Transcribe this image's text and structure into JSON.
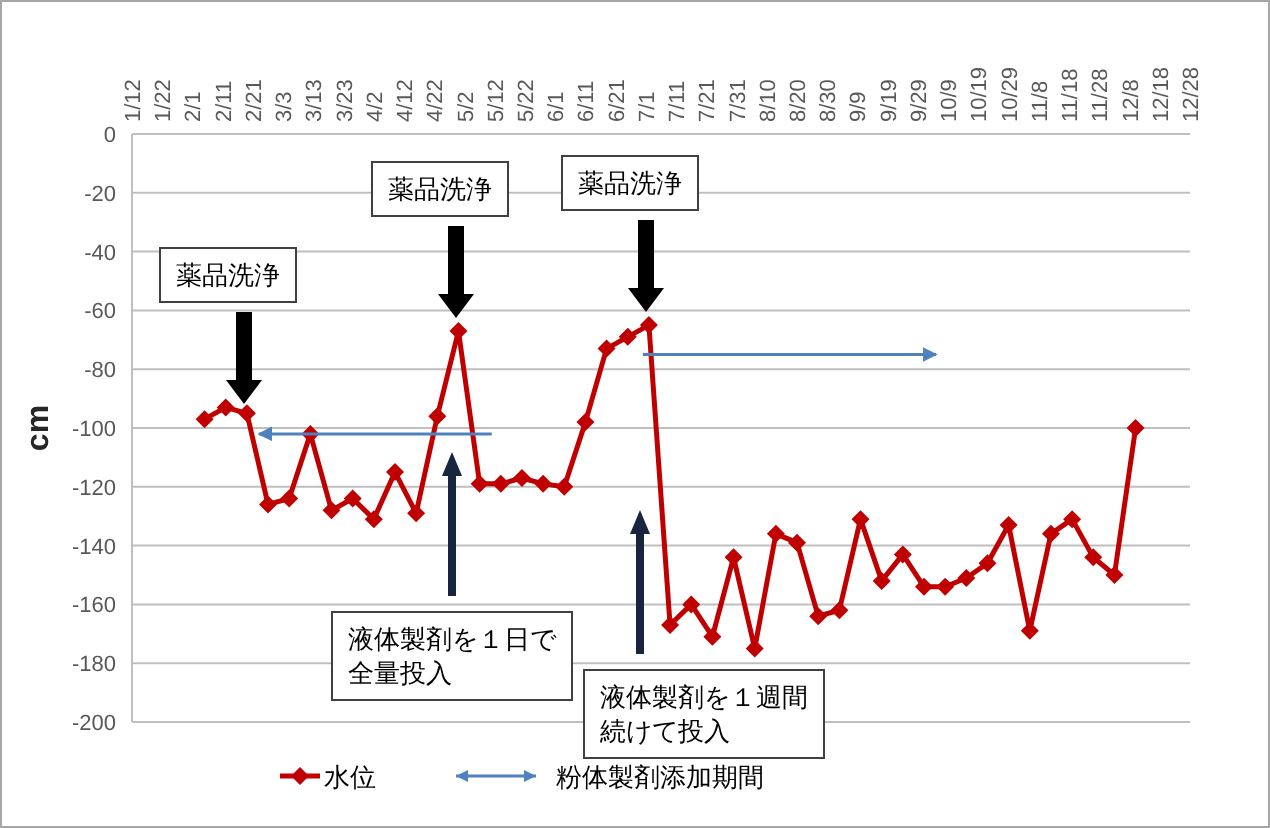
{
  "chart_data": {
    "type": "line",
    "ylabel": "cm",
    "xlim": [
      "--01-12",
      "--12-28"
    ],
    "xticks": [
      {
        "value": "--01-12",
        "label": "1/12"
      },
      {
        "value": "--01-22",
        "label": "1/22"
      },
      {
        "value": "--02-01",
        "label": "2/1"
      },
      {
        "value": "--02-11",
        "label": "2/11"
      },
      {
        "value": "--02-21",
        "label": "2/21"
      },
      {
        "value": "--03-03",
        "label": "3/3"
      },
      {
        "value": "--03-13",
        "label": "3/13"
      },
      {
        "value": "--03-23",
        "label": "3/23"
      },
      {
        "value": "--04-02",
        "label": "4/2"
      },
      {
        "value": "--04-12",
        "label": "4/12"
      },
      {
        "value": "--04-22",
        "label": "4/22"
      },
      {
        "value": "--05-02",
        "label": "5/2"
      },
      {
        "value": "--05-12",
        "label": "5/12"
      },
      {
        "value": "--05-22",
        "label": "5/22"
      },
      {
        "value": "--06-01",
        "label": "6/1"
      },
      {
        "value": "--06-11",
        "label": "6/11"
      },
      {
        "value": "--06-21",
        "label": "6/21"
      },
      {
        "value": "--07-01",
        "label": "7/1"
      },
      {
        "value": "--07-11",
        "label": "7/11"
      },
      {
        "value": "--07-21",
        "label": "7/21"
      },
      {
        "value": "--07-31",
        "label": "7/31"
      },
      {
        "value": "--08-10",
        "label": "8/10"
      },
      {
        "value": "--08-20",
        "label": "8/20"
      },
      {
        "value": "--08-30",
        "label": "8/30"
      },
      {
        "value": "--09-09",
        "label": "9/9"
      },
      {
        "value": "--09-19",
        "label": "9/19"
      },
      {
        "value": "--09-29",
        "label": "9/29"
      },
      {
        "value": "--10-09",
        "label": "10/9"
      },
      {
        "value": "--10-19",
        "label": "10/19"
      },
      {
        "value": "--10-29",
        "label": "10/29"
      },
      {
        "value": "--11-08",
        "label": "11/8"
      },
      {
        "value": "--11-18",
        "label": "11/18"
      },
      {
        "value": "--11-28",
        "label": "11/28"
      },
      {
        "value": "--12-08",
        "label": "12/8"
      },
      {
        "value": "--12-18",
        "label": "12/18"
      },
      {
        "value": "--12-28",
        "label": "12/28"
      }
    ],
    "ylim": [
      -200,
      0
    ],
    "yticks": [
      -200,
      -180,
      -160,
      -140,
      -120,
      -100,
      -80,
      -60,
      -40,
      -20,
      0
    ],
    "grid": "y",
    "legend": "bottom",
    "series": [
      {
        "name": "水位",
        "type": "line",
        "color": "#c00000",
        "marker": "diamond",
        "line_style": "solid",
        "x": [
          "--02-05",
          "--02-12",
          "--02-19",
          "--02-26",
          "--03-05",
          "--03-12",
          "--03-19",
          "--03-26",
          "--04-02",
          "--04-09",
          "--04-16",
          "--04-23",
          "--04-30",
          "--05-07",
          "--05-14",
          "--05-21",
          "--05-28",
          "--06-04",
          "--06-11",
          "--06-18",
          "--06-25",
          "--07-02",
          "--07-09",
          "--07-16",
          "--07-23",
          "--07-30",
          "--08-06",
          "--08-13",
          "--08-20",
          "--08-27",
          "--09-03",
          "--09-10",
          "--09-17",
          "--09-24",
          "--10-01",
          "--10-08",
          "--10-15",
          "--10-22",
          "--10-29",
          "--11-05",
          "--11-12",
          "--11-19",
          "--11-26",
          "--12-03",
          "--12-10"
        ],
        "values": [
          -97,
          -93,
          -95,
          -126,
          -124,
          -102,
          -128,
          -124,
          -131,
          -115,
          -129,
          -96,
          -67,
          -119,
          -119,
          -117,
          -119,
          -120,
          -98,
          -73,
          -69,
          -65,
          -167,
          -160,
          -171,
          -144,
          -175,
          -136,
          -139,
          -164,
          -162,
          -131,
          -152,
          -143,
          -154,
          -154,
          -151,
          -146,
          -133,
          -169,
          -136,
          -131,
          -144,
          -150,
          -100
        ]
      },
      {
        "name": "粉体製剤添加期間",
        "type": "line",
        "color": "#4f81bd",
        "marker": "none",
        "line_style": "solid",
        "x": [
          "--02-23",
          "--05-11",
          null,
          "--06-30",
          "--10-05"
        ],
        "values": [
          -102,
          -102,
          null,
          -75,
          -75
        ]
      }
    ],
    "annotations": [
      "薬品洗浄",
      "薬品洗浄",
      "薬品洗浄",
      "液体製剤を１日で全量投入",
      "液体製剤を１週間続けて投入"
    ]
  }
}
